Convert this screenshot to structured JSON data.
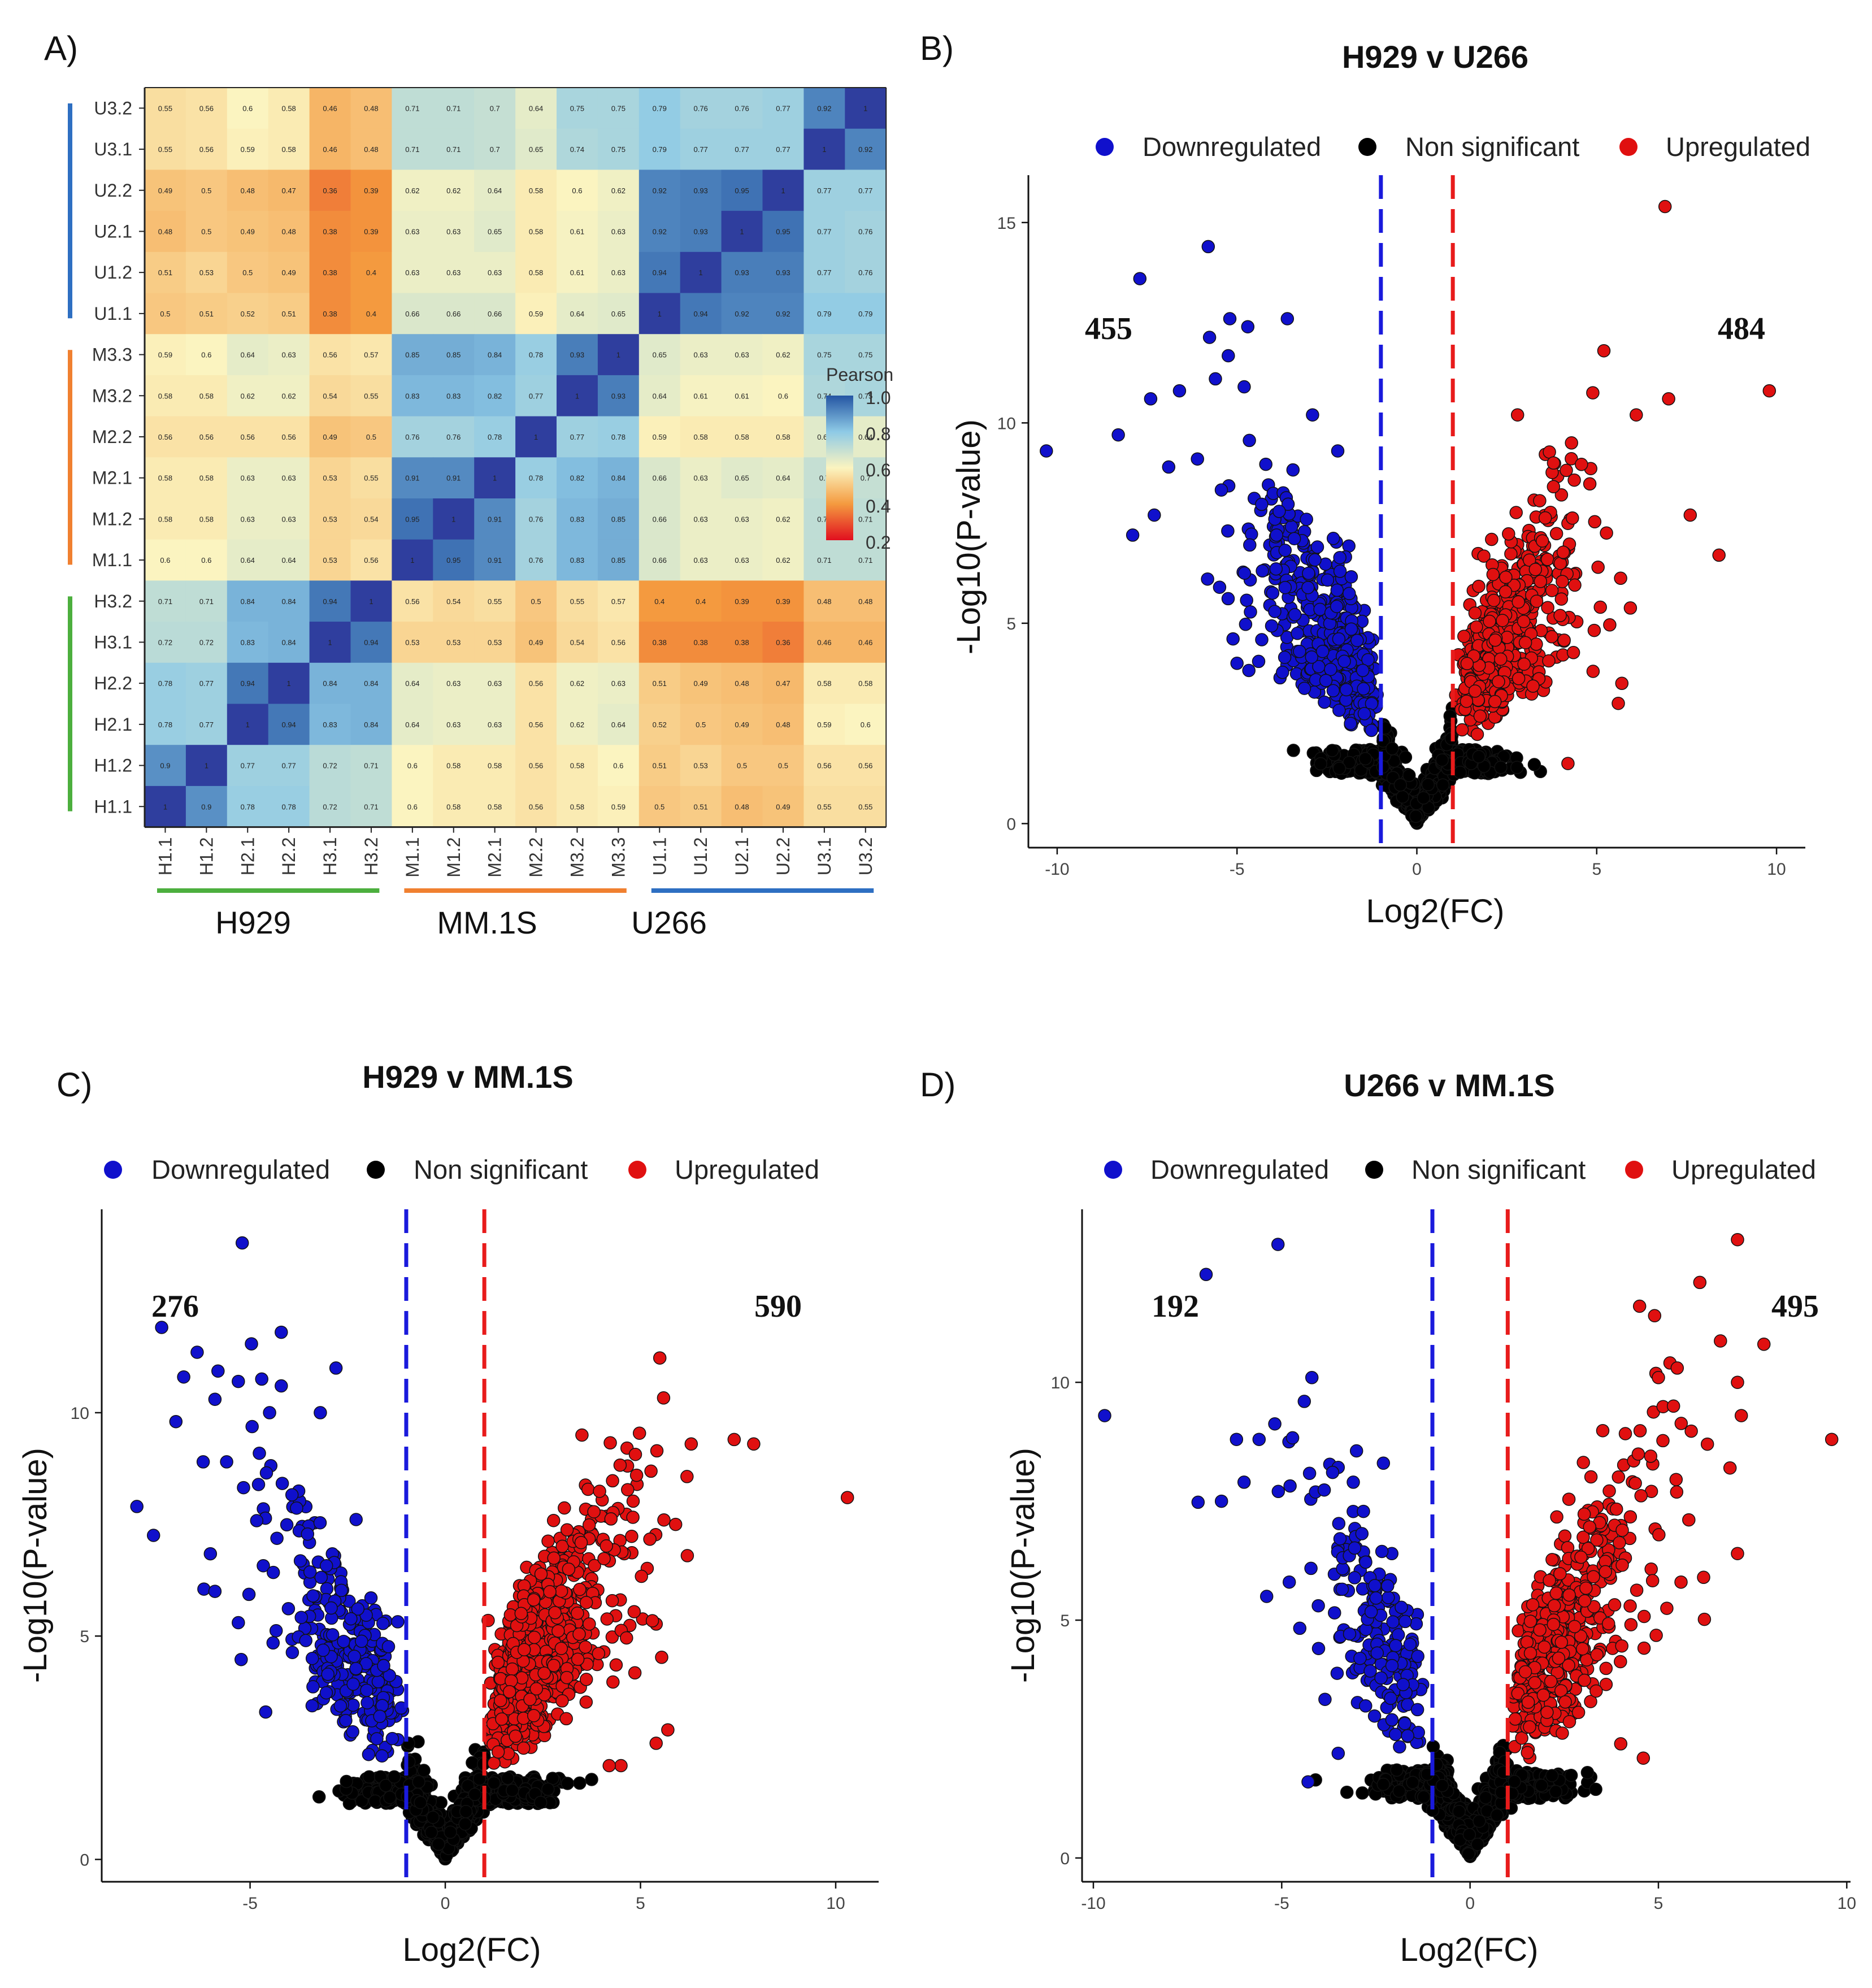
{
  "colors": {
    "down": "#1010cc",
    "non_sig": "#000000",
    "up": "#e01010",
    "thresh_down": "#1a1adc",
    "thresh_up": "#e81b1b",
    "group_h929": "#4caf3e",
    "group_mm1s": "#f08030",
    "group_u266": "#2e6fc2"
  },
  "panels": {
    "A": "A)",
    "B": "B)",
    "C": "C)",
    "D": "D)"
  },
  "chart_data": [
    {
      "id": "A",
      "type": "heatmap",
      "title": "",
      "colorbar_title": "Pearson",
      "colorbar_ticks": [
        "1.0",
        "0.8",
        "0.6",
        "0.4",
        "0.2"
      ],
      "colorbar_range": [
        0.2,
        1.0
      ],
      "columns": [
        "H1.1",
        "H1.2",
        "H2.1",
        "H2.2",
        "H3.1",
        "H3.2",
        "M1.1",
        "M1.2",
        "M2.1",
        "M2.2",
        "M3.2",
        "M3.3",
        "U1.1",
        "U1.2",
        "U2.1",
        "U2.2",
        "U3.1",
        "U3.2"
      ],
      "rows": [
        "U3.2",
        "U3.1",
        "U2.2",
        "U2.1",
        "U1.2",
        "U1.1",
        "M3.3",
        "M3.2",
        "M2.2",
        "M2.1",
        "M1.2",
        "M1.1",
        "H3.2",
        "H3.1",
        "H2.2",
        "H2.1",
        "H1.2",
        "H1.1"
      ],
      "values": [
        [
          0.55,
          0.56,
          0.6,
          0.58,
          0.46,
          0.48,
          0.71,
          0.71,
          0.7,
          0.64,
          0.75,
          0.75,
          0.79,
          0.76,
          0.76,
          0.77,
          0.92,
          1
        ],
        [
          0.55,
          0.56,
          0.59,
          0.58,
          0.46,
          0.48,
          0.71,
          0.71,
          0.7,
          0.65,
          0.74,
          0.75,
          0.79,
          0.77,
          0.77,
          0.77,
          1,
          0.92
        ],
        [
          0.49,
          0.5,
          0.48,
          0.47,
          0.36,
          0.39,
          0.62,
          0.62,
          0.64,
          0.58,
          0.6,
          0.62,
          0.92,
          0.93,
          0.95,
          1,
          0.77,
          0.77
        ],
        [
          0.48,
          0.5,
          0.49,
          0.48,
          0.38,
          0.39,
          0.63,
          0.63,
          0.65,
          0.58,
          0.61,
          0.63,
          0.92,
          0.93,
          1,
          0.95,
          0.77,
          0.76
        ],
        [
          0.51,
          0.53,
          0.5,
          0.49,
          0.38,
          0.4,
          0.63,
          0.63,
          0.63,
          0.58,
          0.61,
          0.63,
          0.94,
          1,
          0.93,
          0.93,
          0.77,
          0.76
        ],
        [
          0.5,
          0.51,
          0.52,
          0.51,
          0.38,
          0.4,
          0.66,
          0.66,
          0.66,
          0.59,
          0.64,
          0.65,
          1,
          0.94,
          0.92,
          0.92,
          0.79,
          0.79
        ],
        [
          0.59,
          0.6,
          0.64,
          0.63,
          0.56,
          0.57,
          0.85,
          0.85,
          0.84,
          0.78,
          0.93,
          1,
          0.65,
          0.63,
          0.63,
          0.62,
          0.75,
          0.75
        ],
        [
          0.58,
          0.58,
          0.62,
          0.62,
          0.54,
          0.55,
          0.83,
          0.83,
          0.82,
          0.77,
          1,
          0.93,
          0.64,
          0.61,
          0.61,
          0.6,
          0.74,
          0.75
        ],
        [
          0.56,
          0.56,
          0.56,
          0.56,
          0.49,
          0.5,
          0.76,
          0.76,
          0.78,
          1,
          0.77,
          0.78,
          0.59,
          0.58,
          0.58,
          0.58,
          0.65,
          0.64
        ],
        [
          0.58,
          0.58,
          0.63,
          0.63,
          0.53,
          0.55,
          0.91,
          0.91,
          1,
          0.78,
          0.82,
          0.84,
          0.66,
          0.63,
          0.65,
          0.64,
          0.7,
          0.7
        ],
        [
          0.58,
          0.58,
          0.63,
          0.63,
          0.53,
          0.54,
          0.95,
          1,
          0.91,
          0.76,
          0.83,
          0.85,
          0.66,
          0.63,
          0.63,
          0.62,
          0.71,
          0.71
        ],
        [
          0.6,
          0.6,
          0.64,
          0.64,
          0.53,
          0.56,
          1,
          0.95,
          0.91,
          0.76,
          0.83,
          0.85,
          0.66,
          0.63,
          0.63,
          0.62,
          0.71,
          0.71
        ],
        [
          0.71,
          0.71,
          0.84,
          0.84,
          0.94,
          1,
          0.56,
          0.54,
          0.55,
          0.5,
          0.55,
          0.57,
          0.4,
          0.4,
          0.39,
          0.39,
          0.48,
          0.48
        ],
        [
          0.72,
          0.72,
          0.83,
          0.84,
          1,
          0.94,
          0.53,
          0.53,
          0.53,
          0.49,
          0.54,
          0.56,
          0.38,
          0.38,
          0.38,
          0.36,
          0.46,
          0.46
        ],
        [
          0.78,
          0.77,
          0.94,
          1,
          0.84,
          0.84,
          0.64,
          0.63,
          0.63,
          0.56,
          0.62,
          0.63,
          0.51,
          0.49,
          0.48,
          0.47,
          0.58,
          0.58
        ],
        [
          0.78,
          0.77,
          1,
          0.94,
          0.83,
          0.84,
          0.64,
          0.63,
          0.63,
          0.56,
          0.62,
          0.64,
          0.52,
          0.5,
          0.49,
          0.48,
          0.59,
          0.6
        ],
        [
          0.9,
          1,
          0.77,
          0.77,
          0.72,
          0.71,
          0.6,
          0.58,
          0.58,
          0.56,
          0.58,
          0.6,
          0.51,
          0.53,
          0.5,
          0.5,
          0.56,
          0.56
        ],
        [
          1,
          0.9,
          0.78,
          0.78,
          0.72,
          0.71,
          0.6,
          0.58,
          0.58,
          0.56,
          0.58,
          0.59,
          0.5,
          0.51,
          0.48,
          0.49,
          0.55,
          0.55
        ]
      ],
      "groups": [
        {
          "name": "H929",
          "color_key": "group_h929"
        },
        {
          "name": "MM.1S",
          "color_key": "group_mm1s"
        },
        {
          "name": "U266",
          "color_key": "group_u266"
        }
      ]
    },
    {
      "id": "B",
      "type": "scatter",
      "title": "H929 v U266",
      "xlabel": "Log2(FC)",
      "ylabel": "-Log10(P-value)",
      "xlim": [
        -10.8,
        10.8
      ],
      "ylim": [
        -0.6,
        15.9
      ],
      "xticks": [
        -10,
        -5,
        0,
        5,
        10
      ],
      "yticks": [
        0,
        5,
        10,
        15
      ],
      "threshold_fc": [
        -1,
        1
      ],
      "legend": [
        "Downregulated",
        "Non significant",
        "Upregulated"
      ],
      "count_down": "455",
      "count_up": "484",
      "sig_counts": [
        455,
        484
      ],
      "highlight_down": [
        [
          -10.3,
          9.3
        ],
        [
          -7.7,
          13.6
        ],
        [
          -5.8,
          14.4
        ],
        [
          -5.2,
          12.6
        ],
        [
          -4.7,
          12.4
        ],
        [
          -3.6,
          12.6
        ],
        [
          -8.3,
          9.7
        ],
        [
          -7.9,
          7.2
        ],
        [
          -7.4,
          10.6
        ],
        [
          -6.6,
          10.8
        ],
        [
          -5.6,
          11.1
        ],
        [
          -4.8,
          10.9
        ],
        [
          -2.9,
          10.2
        ],
        [
          -2.2,
          9.3
        ],
        [
          -7.3,
          7.7
        ],
        [
          -6.9,
          8.9
        ],
        [
          -6.1,
          9.1
        ],
        [
          -5.0,
          4.0
        ],
        [
          -3.9,
          7.2
        ]
      ],
      "highlight_up": [
        [
          6.9,
          15.4
        ],
        [
          5.2,
          11.8
        ],
        [
          9.8,
          10.8
        ],
        [
          7.0,
          10.6
        ],
        [
          6.1,
          10.2
        ],
        [
          2.8,
          10.2
        ],
        [
          8.4,
          6.7
        ],
        [
          7.6,
          7.7
        ],
        [
          5.6,
          3.0
        ],
        [
          5.7,
          3.5
        ],
        [
          4.9,
          3.8
        ],
        [
          5.1,
          5.4
        ],
        [
          3.8,
          9.0
        ],
        [
          4.3,
          9.5
        ],
        [
          4.2,
          1.5
        ]
      ]
    },
    {
      "id": "C",
      "type": "scatter",
      "title": "H929 v MM.1S",
      "xlabel": "Log2(FC)",
      "ylabel": "-Log10(P-value)",
      "xlim": [
        -8.8,
        11.1
      ],
      "ylim": [
        -0.5,
        14.3
      ],
      "xticks": [
        -5,
        0,
        5,
        10
      ],
      "yticks": [
        0,
        5,
        10
      ],
      "threshold_fc": [
        -1,
        1
      ],
      "legend": [
        "Downregulated",
        "Non significant",
        "Upregulated"
      ],
      "count_down": "276",
      "count_up": "590",
      "sig_counts": [
        276,
        590
      ],
      "highlight_down": [
        [
          -7.9,
          7.9
        ],
        [
          -6.9,
          9.8
        ],
        [
          -6.7,
          10.8
        ],
        [
          -6.2,
          8.9
        ],
        [
          -5.9,
          10.3
        ],
        [
          -5.3,
          10.7
        ],
        [
          -5.2,
          13.8
        ],
        [
          -4.2,
          11.8
        ],
        [
          -4.5,
          10.0
        ],
        [
          -4.2,
          10.6
        ],
        [
          -2.8,
          11.0
        ],
        [
          -3.2,
          10.0
        ],
        [
          -5.3,
          5.3
        ],
        [
          -4.6,
          3.3
        ],
        [
          -5.6,
          8.9
        ],
        [
          -5.9,
          6.0
        ]
      ],
      "highlight_up": [
        [
          10.3,
          8.1
        ],
        [
          7.9,
          9.3
        ],
        [
          7.4,
          9.4
        ],
        [
          6.3,
          9.3
        ],
        [
          6.2,
          6.8
        ],
        [
          5.9,
          7.5
        ],
        [
          5.6,
          7.6
        ],
        [
          5.7,
          2.9
        ],
        [
          5.4,
          2.6
        ],
        [
          4.5,
          2.1
        ],
        [
          4.2,
          2.1
        ],
        [
          3.5,
          9.5
        ],
        [
          4.9,
          8.6
        ]
      ]
    },
    {
      "id": "D",
      "type": "scatter",
      "title": "U266 v MM.1S",
      "xlabel": "Log2(FC)",
      "ylabel": "-Log10(P-value)",
      "xlim": [
        -10.3,
        10.1
      ],
      "ylim": [
        -0.5,
        13.4
      ],
      "xticks": [
        -10,
        -5,
        0,
        5,
        10
      ],
      "yticks": [
        0,
        5,
        10
      ],
      "threshold_fc": [
        -1,
        1
      ],
      "legend": [
        "Downregulated",
        "Non significant",
        "Upregulated"
      ],
      "count_down": "192",
      "count_up": "495",
      "sig_counts": [
        192,
        495
      ],
      "highlight_down": [
        [
          -9.7,
          9.3
        ],
        [
          -5.1,
          12.9
        ],
        [
          -4.2,
          10.1
        ],
        [
          -4.4,
          9.6
        ],
        [
          -6.2,
          8.8
        ],
        [
          -5.6,
          8.8
        ],
        [
          -6.6,
          7.5
        ],
        [
          -6.0,
          7.9
        ],
        [
          -4.8,
          5.8
        ],
        [
          -5.4,
          5.5
        ],
        [
          -2.3,
          8.3
        ],
        [
          -3.1,
          7.9
        ],
        [
          -4.3,
          1.6
        ],
        [
          -3.5,
          2.2
        ]
      ],
      "highlight_up": [
        [
          9.6,
          8.8
        ],
        [
          7.1,
          13.0
        ],
        [
          6.1,
          12.1
        ],
        [
          7.8,
          10.8
        ],
        [
          7.1,
          10.0
        ],
        [
          7.2,
          9.3
        ],
        [
          6.9,
          8.2
        ],
        [
          6.3,
          8.7
        ],
        [
          4.5,
          11.6
        ],
        [
          4.9,
          11.4
        ],
        [
          5.0,
          10.1
        ],
        [
          5.5,
          10.3
        ],
        [
          5.4,
          9.5
        ],
        [
          7.1,
          6.4
        ],
        [
          6.2,
          5.9
        ],
        [
          5.6,
          5.8
        ],
        [
          4.6,
          2.1
        ],
        [
          4.0,
          2.4
        ]
      ]
    }
  ]
}
